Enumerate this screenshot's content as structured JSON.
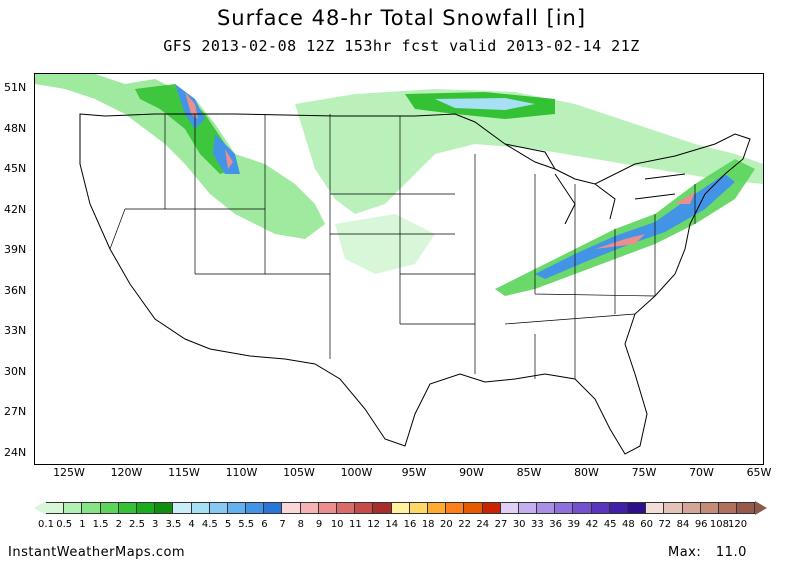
{
  "title": "Surface 48-hr Total Snowfall [in]",
  "subtitle": "GFS 2013-02-08 12Z 153hr fcst valid 2013-02-14 21Z",
  "lat_labels": [
    "51N",
    "48N",
    "45N",
    "42N",
    "39N",
    "36N",
    "33N",
    "30N",
    "27N",
    "24N"
  ],
  "lon_labels": [
    "125W",
    "120W",
    "115W",
    "110W",
    "105W",
    "100W",
    "95W",
    "90W",
    "85W",
    "80W",
    "75W",
    "70W",
    "65W"
  ],
  "legend": {
    "ticks": [
      "0.1",
      "0.5",
      "1",
      "1.5",
      "2",
      "2.5",
      "3",
      "3.5",
      "4",
      "4.5",
      "5",
      "5.5",
      "6",
      "7",
      "8",
      "9",
      "10",
      "11",
      "12",
      "14",
      "16",
      "18",
      "20",
      "22",
      "24",
      "27",
      "30",
      "33",
      "36",
      "39",
      "42",
      "45",
      "48",
      "60",
      "72",
      "84",
      "96",
      "108",
      "120"
    ],
    "colors": [
      "#d8f7d8",
      "#b3f0b3",
      "#86e386",
      "#5ad45a",
      "#34c234",
      "#1aad1a",
      "#0e8f0e",
      "#c9eef8",
      "#a7dff5",
      "#86c9f3",
      "#63b1ef",
      "#4393e6",
      "#2a75d8",
      "#fbd8d8",
      "#f7b3b3",
      "#ec8e8e",
      "#db6a6a",
      "#c64a4a",
      "#a82d2d",
      "#fff3a0",
      "#ffd966",
      "#ffaa33",
      "#ff7f1a",
      "#e65a00",
      "#cc2200",
      "#e0d0f5",
      "#c4b0ee",
      "#a98fe6",
      "#8e70dc",
      "#7452cf",
      "#5a36bf",
      "#4020a8",
      "#2c0f8c",
      "#f2ddd8",
      "#e5c2b8",
      "#d5a697",
      "#c48b78",
      "#b07060",
      "#98584a"
    ]
  },
  "footer": {
    "site": "InstantWeatherMaps.com",
    "max_label": "Max:",
    "max_value": "11.0"
  },
  "map": {
    "region": "Contiguous United States",
    "snow_regions": [
      "Pacific Northwest / Northern Rockies",
      "Northern Plains",
      "Ohio Valley to New England"
    ]
  }
}
